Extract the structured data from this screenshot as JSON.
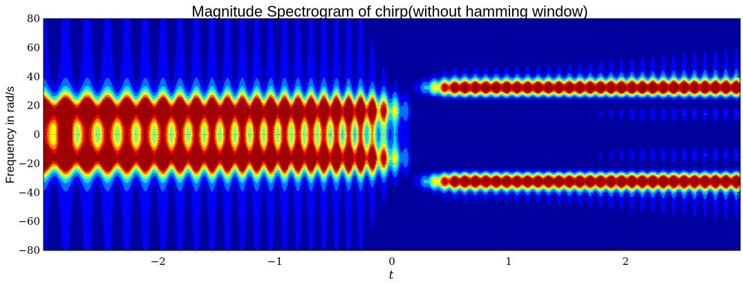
{
  "chart_data": {
    "type": "heatmap",
    "title": "Magnitude Spectrogram of chirp(without hamming window)",
    "xlabel": "t",
    "ylabel": "Frequency in rad/s",
    "xlim": [
      -2.98,
      2.98
    ],
    "ylim": [
      -80,
      80
    ],
    "xticks": [
      -2,
      -1,
      0,
      1,
      2
    ],
    "xtick_labels": [
      "−2",
      "−1",
      "0",
      "1",
      "2"
    ],
    "yticks": [
      80,
      60,
      40,
      20,
      0,
      -20,
      -40,
      -60,
      -80
    ],
    "ytick_labels": [
      "80",
      "60",
      "40",
      "20",
      "0",
      "−20",
      "−40",
      "−60",
      "−80"
    ],
    "grid": true,
    "colormap": "jet",
    "contour_levels": 8,
    "colors": [
      "#00009f",
      "#0000ff",
      "#0070ff",
      "#00e0ff",
      "#80ff80",
      "#ffff00",
      "#ff8000",
      "#ff0000",
      "#9f0000"
    ],
    "features": [
      {
        "component": "band",
        "t_start": -2.98,
        "t_end": 0.0,
        "frequency": 17
      },
      {
        "component": "band",
        "t_start": -2.98,
        "t_end": 0.0,
        "frequency": -17
      },
      {
        "component": "band",
        "t_start": 0.3,
        "t_end": 2.98,
        "frequency": 32
      },
      {
        "component": "band",
        "t_start": 0.3,
        "t_end": 2.98,
        "frequency": -32
      },
      {
        "component": "blob",
        "t_start": -2.9,
        "t_end": -2.7,
        "frequency": 0
      }
    ]
  }
}
